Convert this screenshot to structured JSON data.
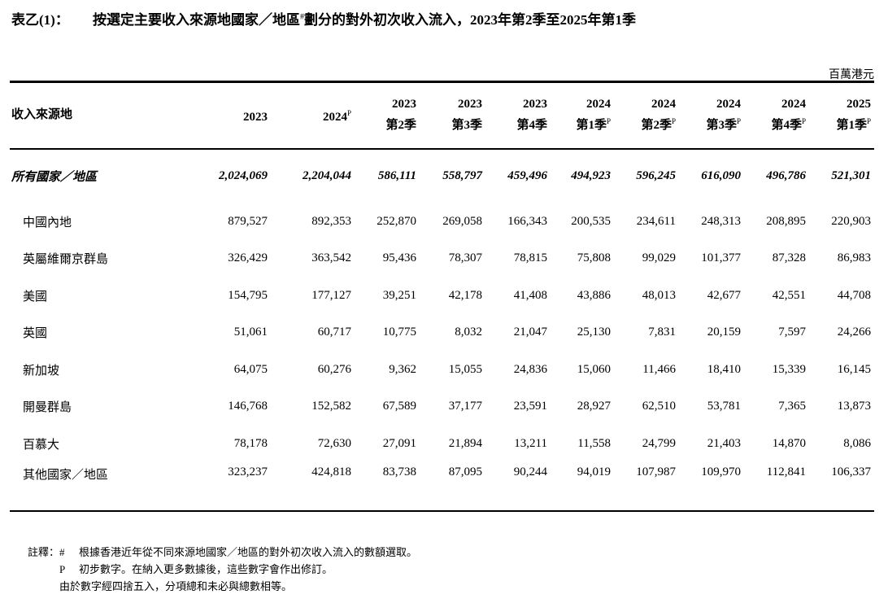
{
  "title": {
    "label": "表乙(1)：",
    "text": "按選定主要收入來源地國家／地區",
    "sup": "#",
    "text2": "劃分的對外初次收入流入，2023年第2季至2025年第1季"
  },
  "unit": "百萬港元",
  "header": {
    "first": "收入來源地",
    "columns": [
      {
        "line1": "2023",
        "line2": "",
        "sup": ""
      },
      {
        "line1": "2024",
        "line2": "",
        "sup": "P"
      },
      {
        "line1": "2023",
        "line2": "第2季",
        "sup": ""
      },
      {
        "line1": "2023",
        "line2": "第3季",
        "sup": ""
      },
      {
        "line1": "2023",
        "line2": "第4季",
        "sup": ""
      },
      {
        "line1": "2024",
        "line2": "第1季",
        "sup": "P"
      },
      {
        "line1": "2024",
        "line2": "第2季",
        "sup": "P"
      },
      {
        "line1": "2024",
        "line2": "第3季",
        "sup": "P"
      },
      {
        "line1": "2024",
        "line2": "第4季",
        "sup": "P"
      },
      {
        "line1": "2025",
        "line2": "第1季",
        "sup": "P"
      }
    ]
  },
  "rows": [
    {
      "label": "所有國家／地區",
      "values": [
        "2,024,069",
        "2,204,044",
        "586,111",
        "558,797",
        "459,496",
        "494,923",
        "596,245",
        "616,090",
        "496,786",
        "521,301"
      ]
    },
    {
      "label": "中國內地",
      "values": [
        "879,527",
        "892,353",
        "252,870",
        "269,058",
        "166,343",
        "200,535",
        "234,611",
        "248,313",
        "208,895",
        "220,903"
      ]
    },
    {
      "label": "英屬維爾京群島",
      "values": [
        "326,429",
        "363,542",
        "95,436",
        "78,307",
        "78,815",
        "75,808",
        "99,029",
        "101,377",
        "87,328",
        "86,983"
      ]
    },
    {
      "label": "美國",
      "values": [
        "154,795",
        "177,127",
        "39,251",
        "42,178",
        "41,408",
        "43,886",
        "48,013",
        "42,677",
        "42,551",
        "44,708"
      ]
    },
    {
      "label": "英國",
      "values": [
        "51,061",
        "60,717",
        "10,775",
        "8,032",
        "21,047",
        "25,130",
        "7,831",
        "20,159",
        "7,597",
        "24,266"
      ]
    },
    {
      "label": "新加坡",
      "values": [
        "64,075",
        "60,276",
        "9,362",
        "15,055",
        "24,836",
        "15,060",
        "11,466",
        "18,410",
        "15,339",
        "16,145"
      ]
    },
    {
      "label": "開曼群島",
      "values": [
        "146,768",
        "152,582",
        "67,589",
        "37,177",
        "23,591",
        "28,927",
        "62,510",
        "53,781",
        "7,365",
        "13,873"
      ]
    },
    {
      "label": "百慕大",
      "values": [
        "78,178",
        "72,630",
        "27,091",
        "21,894",
        "13,211",
        "11,558",
        "24,799",
        "21,403",
        "14,870",
        "8,086"
      ]
    },
    {
      "label": "其他國家／地區",
      "values": [
        "323,237",
        "424,818",
        "83,738",
        "87,095",
        "90,244",
        "94,019",
        "107,987",
        "109,970",
        "112,841",
        "106,337"
      ]
    }
  ],
  "notes": {
    "prefix": "註釋：",
    "items": [
      {
        "mark": "#",
        "text": "根據香港近年從不同來源地國家／地區的對外初次收入流入的數額選取。"
      },
      {
        "mark": "P",
        "text": "初步數字。在納入更多數據後，這些數字會作出修訂。"
      },
      {
        "mark": "",
        "text": "由於數字經四捨五入，分項總和未必與總數相等。"
      }
    ]
  }
}
